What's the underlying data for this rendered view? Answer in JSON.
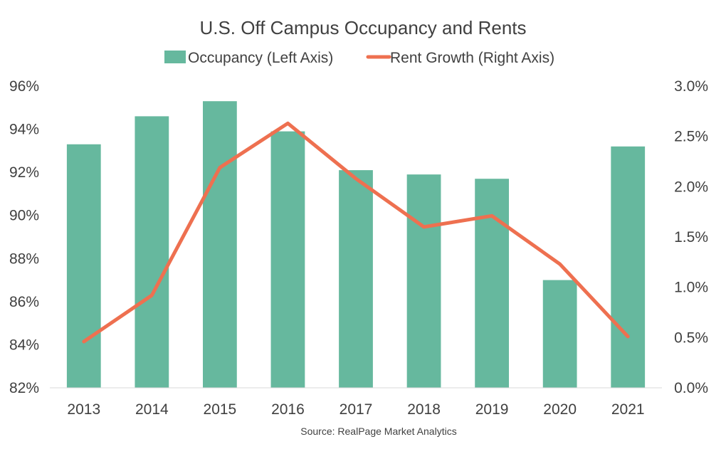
{
  "chart_data": {
    "type": "bar",
    "title": "U.S. Off Campus Occupancy and Rents",
    "source": "Source: RealPage Market Analytics",
    "categories": [
      "2013",
      "2014",
      "2015",
      "2016",
      "2017",
      "2018",
      "2019",
      "2020",
      "2021"
    ],
    "series": [
      {
        "name": "Occupancy (Left Axis)",
        "type": "bar",
        "axis": "left",
        "color": "#66B89E",
        "values": [
          93.3,
          94.6,
          95.3,
          93.9,
          92.1,
          91.9,
          91.7,
          87.0,
          93.2
        ]
      },
      {
        "name": "Rent Growth (Right Axis)",
        "type": "line",
        "axis": "right",
        "color": "#EE7050",
        "values": [
          0.46,
          0.92,
          2.19,
          2.63,
          2.08,
          1.6,
          1.71,
          1.23,
          0.51
        ]
      }
    ],
    "y_left": {
      "lim": [
        82,
        96
      ],
      "ticks": [
        82,
        84,
        86,
        88,
        90,
        92,
        94,
        96
      ],
      "tick_labels": [
        "82%",
        "84%",
        "86%",
        "88%",
        "90%",
        "92%",
        "94%",
        "96%"
      ]
    },
    "y_right": {
      "lim": [
        0,
        3
      ],
      "ticks": [
        0,
        0.5,
        1,
        1.5,
        2,
        2.5,
        3
      ],
      "tick_labels": [
        "0.0%",
        "0.5%",
        "1.0%",
        "1.5%",
        "2.0%",
        "2.5%",
        "3.0%"
      ]
    },
    "legend_position": "top",
    "grid": false
  }
}
